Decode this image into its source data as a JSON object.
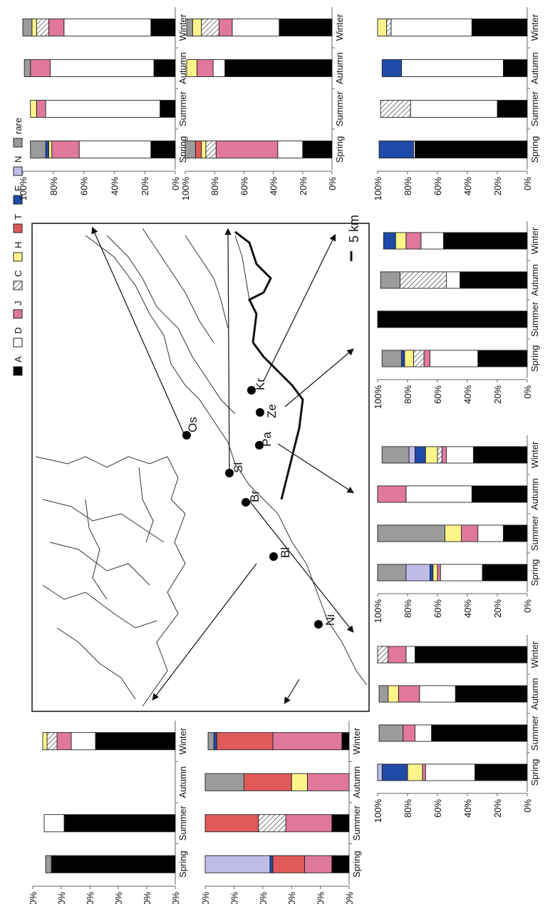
{
  "legend": [
    {
      "key": "A",
      "label": "A",
      "color": "#000000",
      "pattern": "solid"
    },
    {
      "key": "D",
      "label": "D",
      "color": "#ffffff",
      "pattern": "solid"
    },
    {
      "key": "J",
      "label": "J",
      "color": "#e0789d",
      "pattern": "solid"
    },
    {
      "key": "C",
      "label": "C",
      "color": "#ffffff",
      "pattern": "hatch"
    },
    {
      "key": "H",
      "label": "H",
      "color": "#fdf58a",
      "pattern": "solid"
    },
    {
      "key": "T",
      "label": "T",
      "color": "#e05a5a",
      "pattern": "solid"
    },
    {
      "key": "F",
      "label": "F",
      "color": "#1f4aa8",
      "pattern": "solid"
    },
    {
      "key": "N",
      "label": "N",
      "color": "#bfbde8",
      "pattern": "solid"
    },
    {
      "key": "rare",
      "label": "rare",
      "color": "#9b9b9b",
      "pattern": "solid"
    }
  ],
  "map": {
    "sites": [
      "Os",
      "Sl",
      "Br",
      "Pa",
      "Ze",
      "Kr",
      "Bl",
      "Ni"
    ],
    "scale_label": "5 km"
  },
  "chart_data": [
    {
      "type": "bar",
      "stacked": true,
      "categories": [
        "Spring",
        "Summer",
        "Autumn",
        "Winter"
      ],
      "yticks": [
        "0%",
        "20%",
        "40%",
        "60%",
        "80%",
        "100%"
      ],
      "ylim": [
        0,
        100
      ],
      "bars": [
        {
          "A": 16,
          "D": 47,
          "J": 18,
          "C": 0,
          "H": 2,
          "F": 2,
          "rare": 10
        },
        {
          "A": 10,
          "D": 75,
          "J": 6,
          "C": 0,
          "H": 4,
          "F": 0,
          "rare": 0
        },
        {
          "A": 14,
          "D": 68,
          "J": 13,
          "rare": 4
        },
        {
          "A": 16,
          "D": 57,
          "J": 10,
          "C": 8,
          "H": 3,
          "rare": 6
        }
      ]
    },
    {
      "type": "bar",
      "stacked": true,
      "categories": [
        "Spring",
        "Summer",
        "Autumn",
        "Winter"
      ],
      "yticks": [
        "0%",
        "20%",
        "40%",
        "60%",
        "80%",
        "100%"
      ],
      "ylim": [
        0,
        100
      ],
      "bars": [
        {
          "A": 20,
          "D": 17,
          "J": 42,
          "C": 7,
          "H": 3,
          "T": 4,
          "rare": 7
        },
        {
          "A": 0,
          "D": 0,
          "J": 0
        },
        {
          "A": 73,
          "D": 8,
          "J": 11,
          "H": 7
        },
        {
          "A": 36,
          "D": 32,
          "J": 9,
          "C": 12,
          "H": 6,
          "rare": 4
        }
      ]
    },
    {
      "type": "bar",
      "stacked": true,
      "categories": [
        "Spring",
        "Summer",
        "Autumn",
        "Winter"
      ],
      "yticks": [
        "0%",
        "20%",
        "40%",
        "60%",
        "80%",
        "100%"
      ],
      "ylim": [
        0,
        100
      ],
      "bars": [
        {
          "A": 75,
          "D": 1,
          "F": 23
        },
        {
          "A": 20,
          "D": 58,
          "C": 20
        },
        {
          "A": 16,
          "D": 68,
          "F": 13
        },
        {
          "A": 37,
          "D": 54,
          "C": 3,
          "H": 6
        }
      ]
    },
    {
      "type": "bar",
      "stacked": true,
      "categories": [
        "Spring",
        "Summer",
        "Autumn",
        "Winter"
      ],
      "yticks": [
        "0%",
        "20%",
        "40%",
        "60%",
        "80%",
        "100%"
      ],
      "ylim": [
        0,
        100
      ],
      "bars": [
        {
          "A": 33,
          "D": 32,
          "J": 4,
          "C": 7,
          "H": 6,
          "F": 2,
          "rare": 13
        },
        {
          "A": 100
        },
        {
          "A": 45,
          "D": 9,
          "C": 31,
          "rare": 13
        },
        {
          "A": 56,
          "D": 15,
          "J": 10,
          "H": 7,
          "F": 8
        }
      ]
    },
    {
      "type": "bar",
      "stacked": true,
      "categories": [
        "Spring",
        "Summer",
        "Autumn",
        "Winter"
      ],
      "yticks": [
        "0%",
        "20%",
        "40%",
        "60%",
        "80%",
        "100%"
      ],
      "ylim": [
        0,
        100
      ],
      "bars": [
        {
          "A": 30,
          "D": 28,
          "J": 2,
          "H": 3,
          "F": 2,
          "N": 16,
          "rare": 19
        },
        {
          "A": 16,
          "D": 17,
          "J": 11,
          "H": 11,
          "rare": 45
        },
        {
          "A": 37,
          "D": 44,
          "J": 19
        },
        {
          "A": 36,
          "D": 18,
          "J": 3,
          "C": 3,
          "H": 8,
          "F": 7,
          "N": 4,
          "rare": 18
        }
      ]
    },
    {
      "type": "bar",
      "stacked": true,
      "categories": [
        "Spring",
        "Summer",
        "Autumn",
        "Winter"
      ],
      "yticks": [
        "0%",
        "20%",
        "40%",
        "60%",
        "80%",
        "100%"
      ],
      "ylim": [
        0,
        100
      ],
      "bars": [
        {
          "A": 35,
          "D": 33,
          "J": 2,
          "H": 10,
          "F": 17,
          "N": 3
        },
        {
          "A": 64,
          "D": 11,
          "J": 8,
          "rare": 16
        },
        {
          "A": 48,
          "D": 24,
          "J": 14,
          "H": 7,
          "rare": 6
        },
        {
          "A": 75,
          "D": 6,
          "J": 12,
          "C": 7
        }
      ]
    },
    {
      "type": "bar",
      "stacked": true,
      "categories": [
        "Spring",
        "Summer",
        "Autumn",
        "Winter"
      ],
      "yticks": [
        "0%",
        "20%",
        "40%",
        "60%",
        "80%",
        "100%"
      ],
      "ylim": [
        0,
        100
      ],
      "bars": [
        {
          "A": 87,
          "rare": 4
        },
        {
          "A": 78,
          "D": 14
        },
        {},
        {
          "A": 56,
          "D": 17,
          "J": 10,
          "C": 7,
          "H": 3
        }
      ]
    },
    {
      "type": "bar",
      "stacked": true,
      "categories": [
        "Spring",
        "Summer",
        "Autumn",
        "Winter"
      ],
      "yticks": [
        "0%",
        "20%",
        "40%",
        "60%",
        "80%",
        "100%"
      ],
      "ylim": [
        0,
        100
      ],
      "bars": [
        {
          "A": 12,
          "J": 19,
          "T": 22,
          "F": 2,
          "N": 45
        },
        {
          "A": 12,
          "J": 32,
          "T": 37,
          "C": 19
        },
        {
          "J": 29,
          "T": 33,
          "H": 11,
          "rare": 27
        },
        {
          "A": 5,
          "J": 48,
          "T": 39,
          "F": 2,
          "rare": 4
        }
      ]
    }
  ]
}
